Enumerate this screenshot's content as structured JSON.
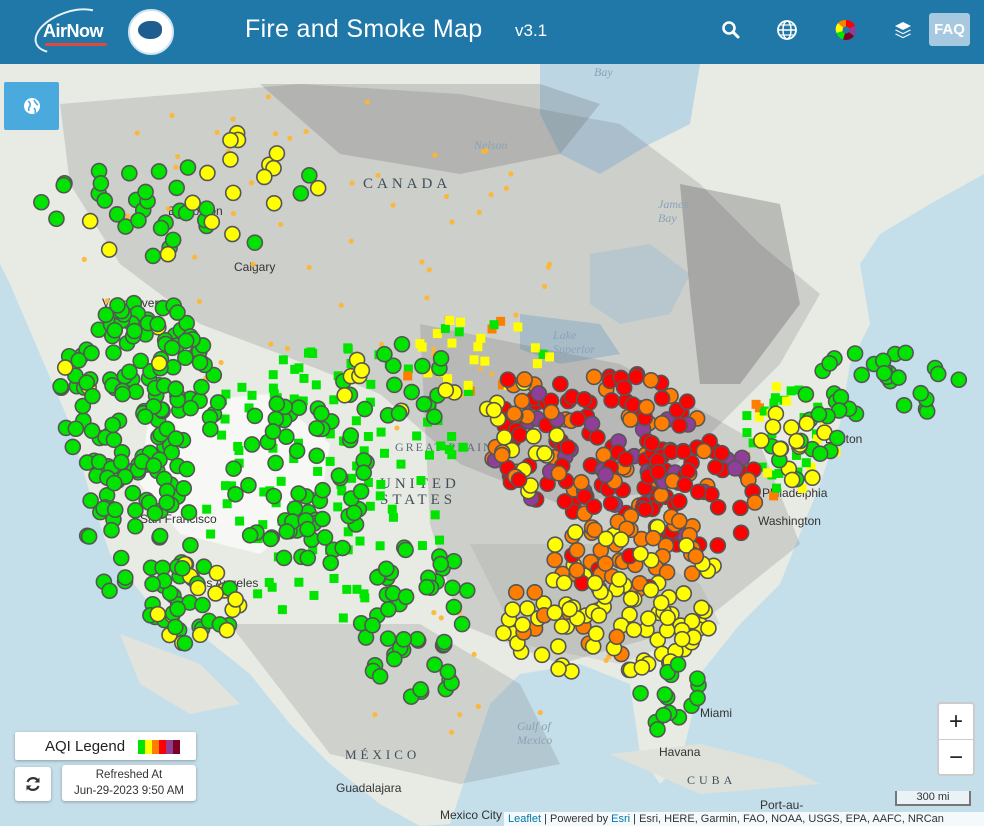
{
  "header": {
    "logo_text": "AirNow",
    "title": "Fire and Smoke Map",
    "version": "v3.1",
    "faq_label": "FAQ",
    "icons": [
      "search-icon",
      "globe-icon",
      "color-wheel-icon",
      "layers-icon"
    ]
  },
  "map": {
    "labels": {
      "canada": "CANADA",
      "united_states": "UNITED STATES",
      "mexico": "MÉXICO",
      "great_plains": "GREAT PLAINS",
      "bay": "Bay",
      "nelson": "Nelson",
      "james_bay": "James Bay",
      "lake_superior": "Lake Superior",
      "gulf_mexico": "Gulf of Mexico",
      "edmonton": "Edmonton",
      "calgary": "Calgary",
      "vancouver": "Vancouver",
      "san_francisco": "San Francisco",
      "los_angeles": "Los Angeles",
      "mexico_city": "Mexico City",
      "guadalajara": "Guadalajara",
      "havana": "Havana",
      "cuba": "CUBA",
      "miami": "Miami",
      "philadelphia": "Philadelphia",
      "washington": "Washington",
      "boston": "Boston",
      "port_au": "Port-au-"
    }
  },
  "legend": {
    "label": "AQI Legend",
    "colors": [
      "#00e400",
      "#ffff00",
      "#ff7e00",
      "#ff0000",
      "#8f3f97",
      "#7e0023"
    ]
  },
  "refresh": {
    "line1": "Refreshed At",
    "line2": "Jun-29-2023 9:50 AM"
  },
  "zoom": {
    "in": "+",
    "out": "−"
  },
  "scale": "300 mi",
  "attribution": {
    "leaflet": "Leaflet",
    "sep1": " | Powered by ",
    "esri": "Esri",
    "rest": " | Esri, HERE, Garmin, FAO, NOAA, USGS, EPA, AAFC, NRCan"
  },
  "aqi_colors": {
    "good": "#00e400",
    "moderate": "#ffff00",
    "usg": "#ff7e00",
    "unhealthy": "#ff0000",
    "very_unhealthy": "#8f3f97"
  }
}
